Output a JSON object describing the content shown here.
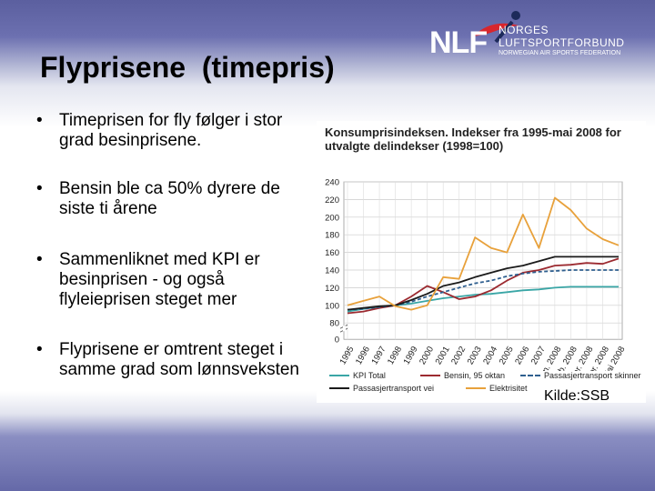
{
  "slide": {
    "title": "Flyprisene  (timepris)",
    "bullets": [
      "Timeprisen for fly følger i stor grad besinprisene.",
      "Bensin ble ca 50% dyrere de siste ti årene",
      "Sammenliknet med KPI er besinprisen - og også flyleieprisen steget mer",
      "Flyprisene er omtrent steget i samme grad som lønnsveksten"
    ],
    "source": "Kilde:SSB"
  },
  "logo": {
    "abbr": "NLF",
    "line1": "NORGES",
    "line2": "LUFTSPORTFORBUND",
    "line3": "NORWEGIAN AIR SPORTS FEDERATION",
    "icon": "flying-figure-icon"
  },
  "colors": {
    "kpi": "#3aa6a6",
    "bensin": "#9c2a30",
    "skinner": "#2f5f8f",
    "vei": "#1a1a1a",
    "elektrisitet": "#e8a13b"
  },
  "chart_data": {
    "type": "line",
    "title": "Konsumprisindeksen. Indekser fra 1995-mai 2008 for utvalgte delindekser (1998=100)",
    "categories": [
      "1995",
      "1996",
      "1997",
      "1998",
      "1999",
      "2000",
      "2001",
      "2002",
      "2003",
      "2004",
      "2005",
      "2006",
      "2007",
      "Jan. 2008",
      "Feb. 2008",
      "Mar. 2008",
      "Apr. 2008",
      "Mai 2008"
    ],
    "yticks": [
      0,
      80,
      100,
      120,
      140,
      160,
      180,
      200,
      220,
      240
    ],
    "ylim": [
      0,
      240
    ],
    "axis_break": [
      0,
      80
    ],
    "grid": true,
    "legend_position": "bottom",
    "series": [
      {
        "name": "KPI Total",
        "color_key": "kpi",
        "values": [
          93,
          96,
          98,
          100,
          102,
          105,
          108,
          110,
          112,
          113,
          115,
          117,
          118,
          120,
          121,
          121,
          121,
          121
        ]
      },
      {
        "name": "Bensin, 95 oktan",
        "color_key": "bensin",
        "values": [
          91,
          93,
          97,
          100,
          110,
          122,
          115,
          107,
          110,
          117,
          128,
          137,
          140,
          145,
          146,
          148,
          147,
          153
        ]
      },
      {
        "name": "Passasjertransport skinner",
        "color_key": "skinner",
        "values": [
          95,
          96,
          98,
          100,
          104,
          110,
          115,
          120,
          125,
          128,
          133,
          136,
          138,
          139,
          140,
          140,
          140,
          140
        ]
      },
      {
        "name": "Passasjertransport vei",
        "color_key": "vei",
        "values": [
          95,
          97,
          99,
          100,
          106,
          113,
          122,
          126,
          132,
          137,
          142,
          145,
          150,
          155,
          155,
          155,
          155,
          155
        ]
      },
      {
        "name": "Elektrisitet",
        "color_key": "elektrisitet",
        "values": [
          100,
          105,
          110,
          99,
          95,
          100,
          132,
          130,
          177,
          165,
          160,
          203,
          165,
          222,
          208,
          187,
          175,
          168
        ]
      }
    ]
  }
}
